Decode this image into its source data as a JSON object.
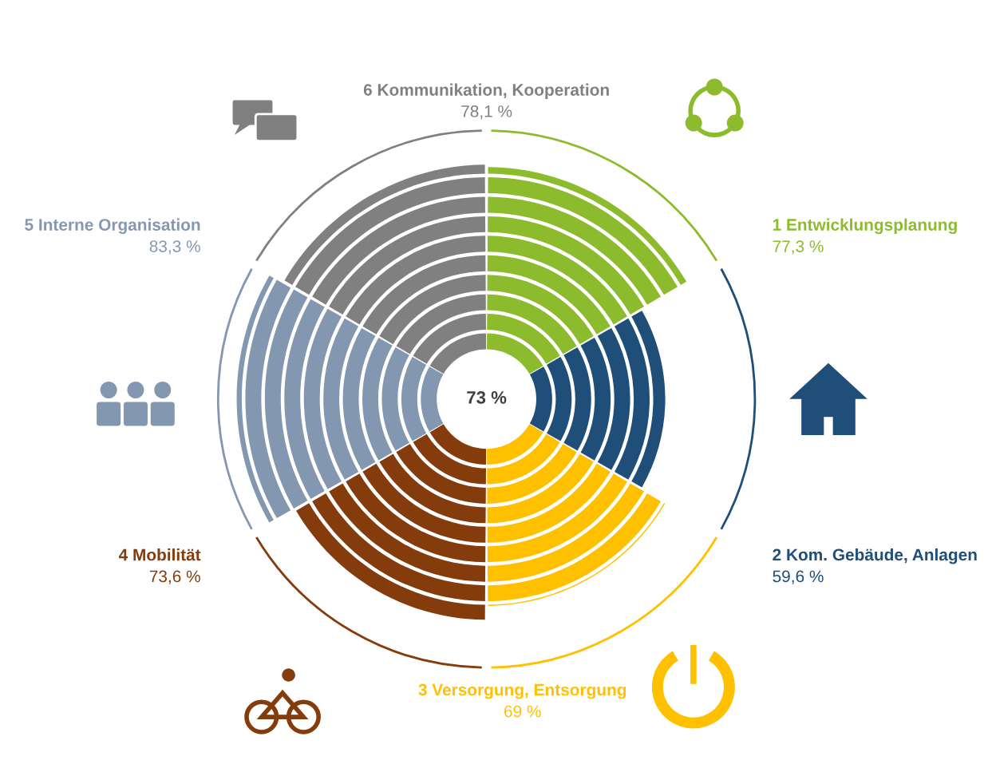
{
  "chart_data": {
    "type": "other",
    "categories": [
      "1 Entwicklungsplanung",
      "2 Kom. Gebäude, Anlagen",
      "3 Versorgung, Entsorgung",
      "4 Mobilität",
      "5 Interne Organisation",
      "6 Kommunikation, Kooperation"
    ],
    "values": [
      77.3,
      59.6,
      69,
      73.6,
      83.3,
      78.1
    ],
    "value_labels": [
      "77,3 %",
      "59,6 %",
      "69 %",
      "73,6 %",
      "83,3 %",
      "78,1 %"
    ],
    "colors": [
      "#8cbb2e",
      "#1f4e79",
      "#ffc000",
      "#843c0c",
      "#8497b0",
      "#808080"
    ],
    "annotations": [
      "73 %"
    ]
  }
}
